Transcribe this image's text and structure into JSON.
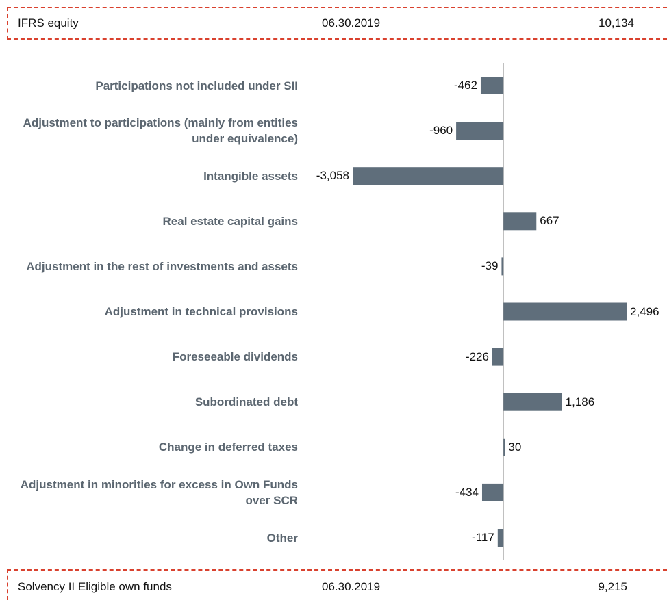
{
  "header": {
    "label": "IFRS equity",
    "date": "06.30.2019",
    "value": "10,134"
  },
  "footer": {
    "label": "Solvency II Eligible own funds",
    "date": "06.30.2019",
    "value": "9,215"
  },
  "chart_data": {
    "type": "bar",
    "orientation": "horizontal",
    "color": "#5f6e7b",
    "categories": [
      "Participations not included under SII",
      "Adjustment to participations (mainly from entities under equivalence)",
      "Intangible assets",
      "Real estate capital gains",
      "Adjustment in the rest of investments and assets",
      "Adjustment in technical provisions",
      "Foreseeable dividends",
      "Subordinated debt",
      "Change in deferred taxes",
      "Adjustment in minorities for excess in Own Funds over SCR",
      "Other"
    ],
    "values": [
      -462,
      -960,
      -3058,
      667,
      -39,
      2496,
      -226,
      1186,
      30,
      -434,
      -117
    ],
    "value_labels": [
      "-462",
      "-960",
      "-3,058",
      "667",
      "-39",
      "2,496",
      "-226",
      "1,186",
      "30",
      "-434",
      "-117"
    ]
  }
}
